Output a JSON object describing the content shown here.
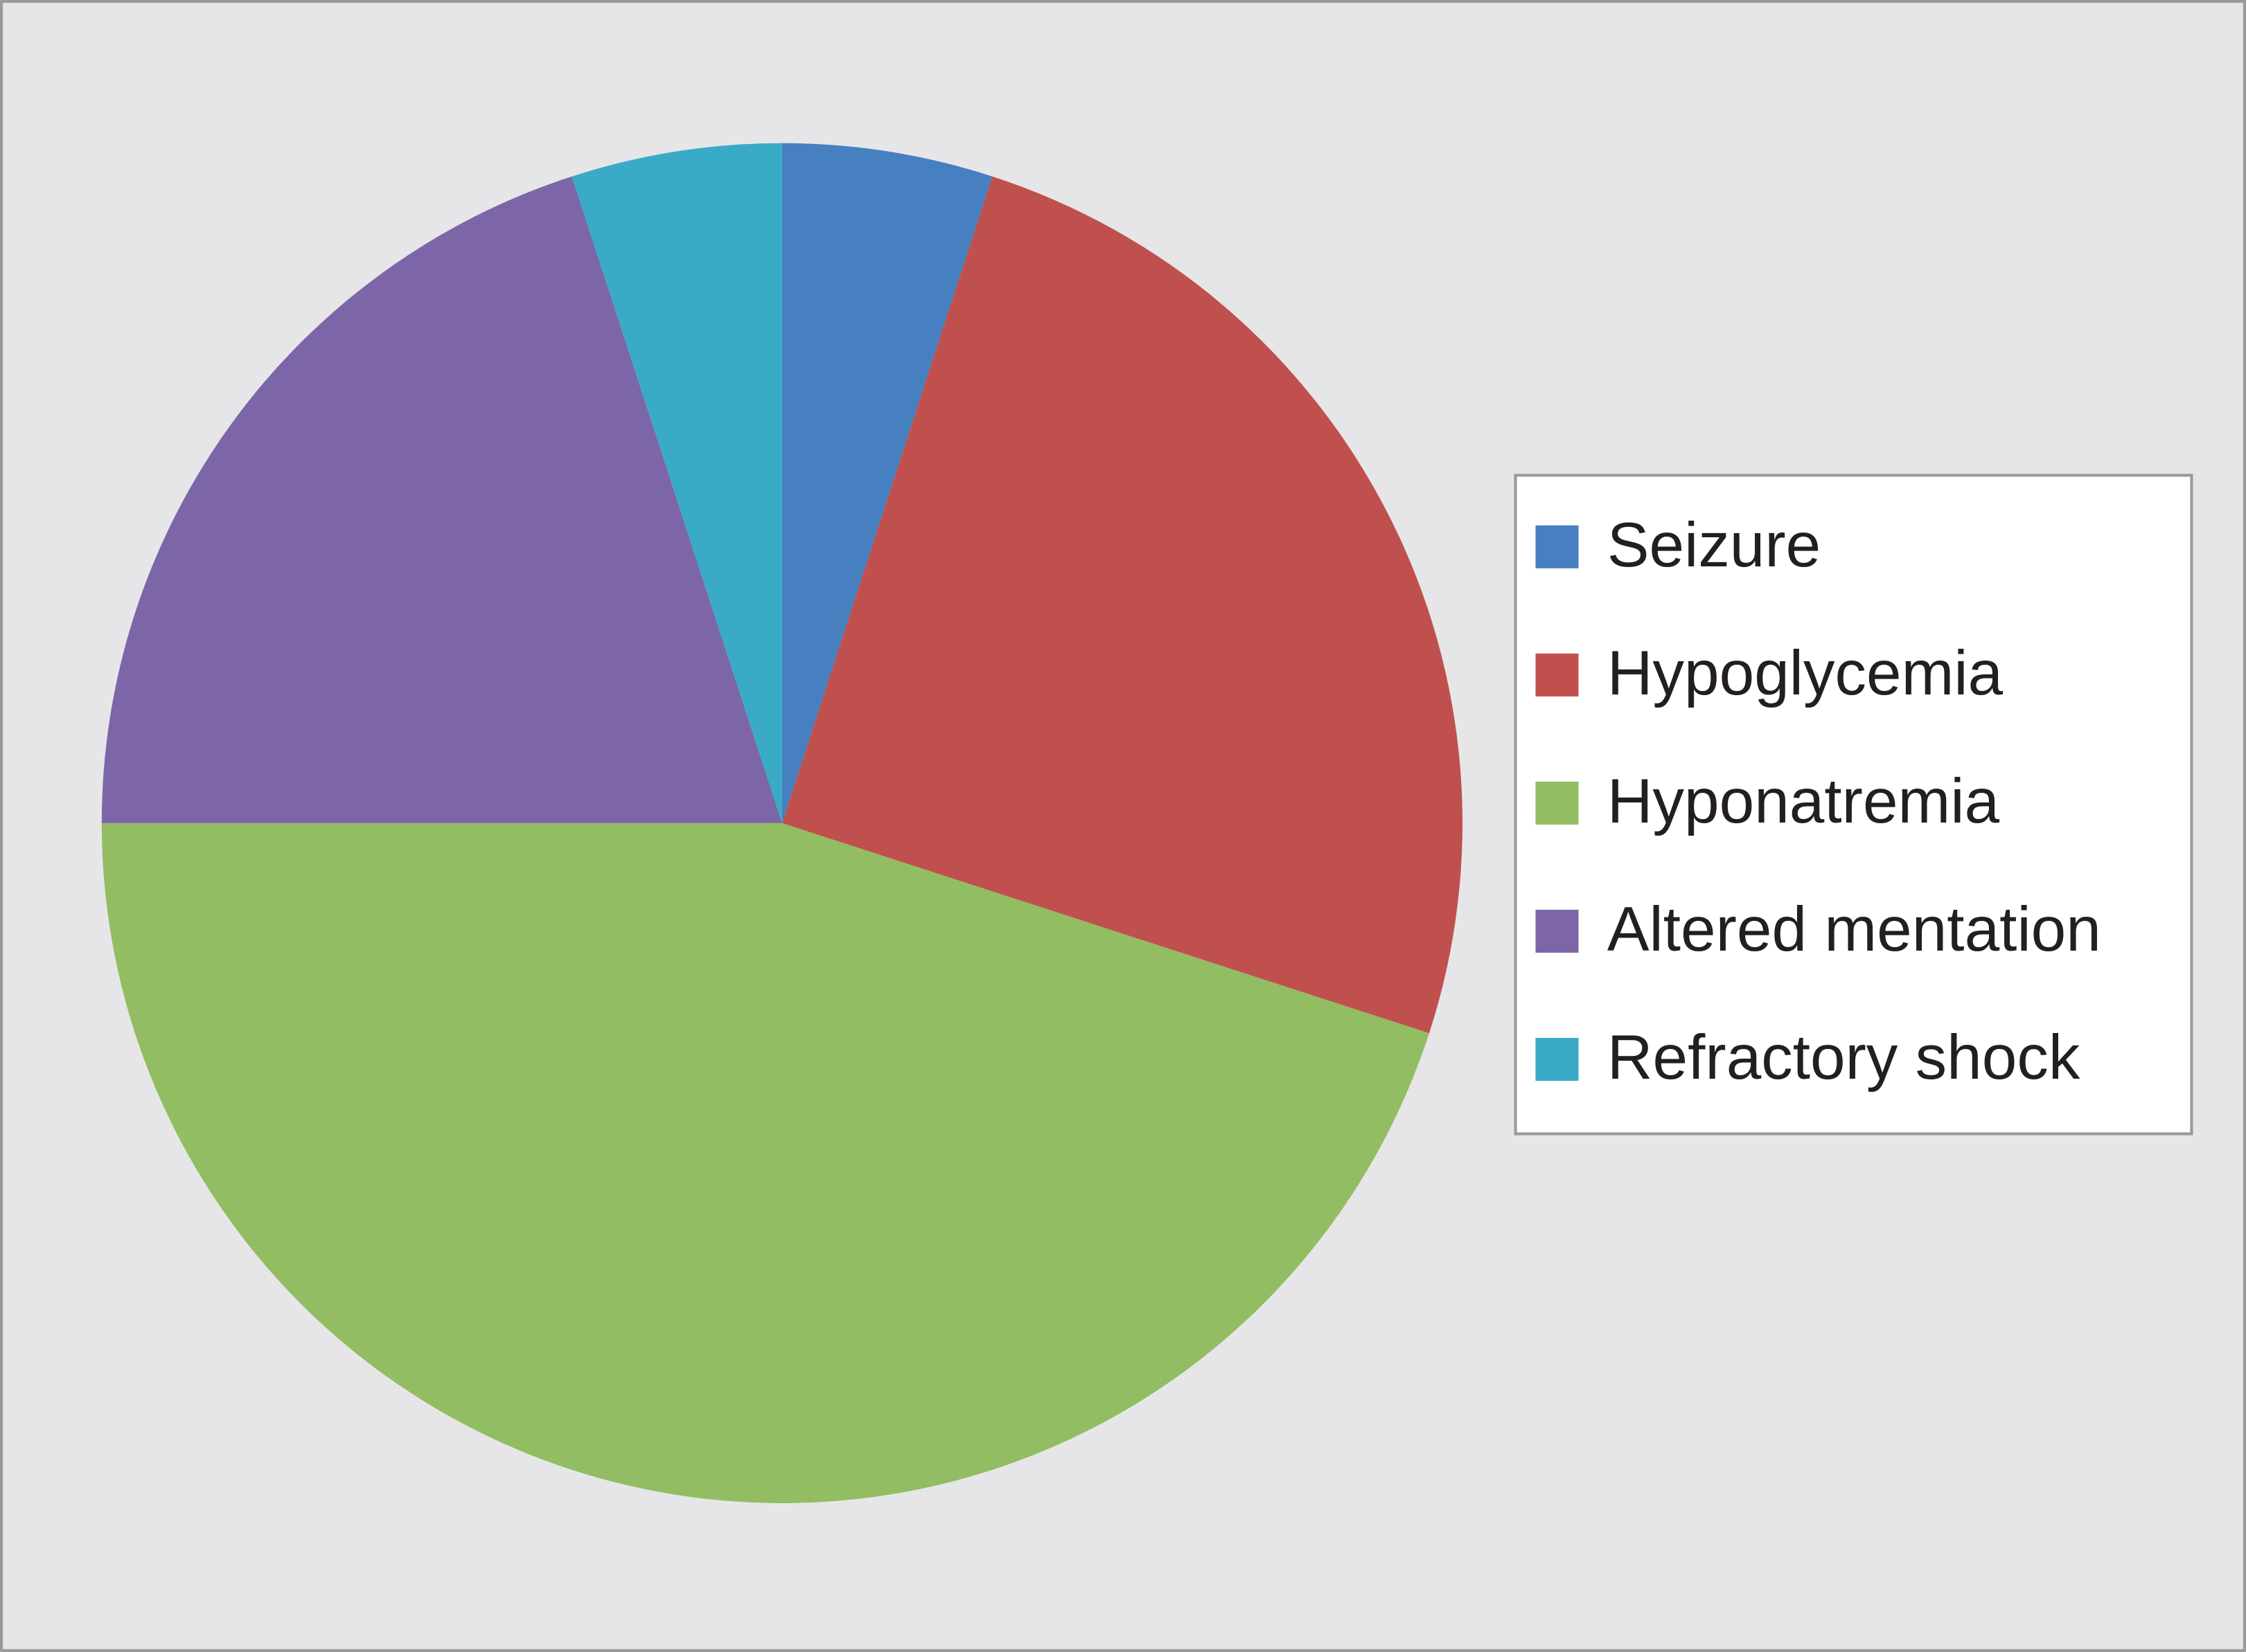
{
  "chart_data": {
    "type": "pie",
    "categories": [
      "Seizure",
      "Hypoglycemia",
      "Hyponatremia",
      "Altered mentation",
      "Refractory shock"
    ],
    "values": [
      5,
      25,
      45,
      20,
      5
    ],
    "colors": [
      "#4680c0",
      "#c0504d",
      "#92bd62",
      "#7c66a8",
      "#3aabc6"
    ],
    "legend": "right"
  }
}
